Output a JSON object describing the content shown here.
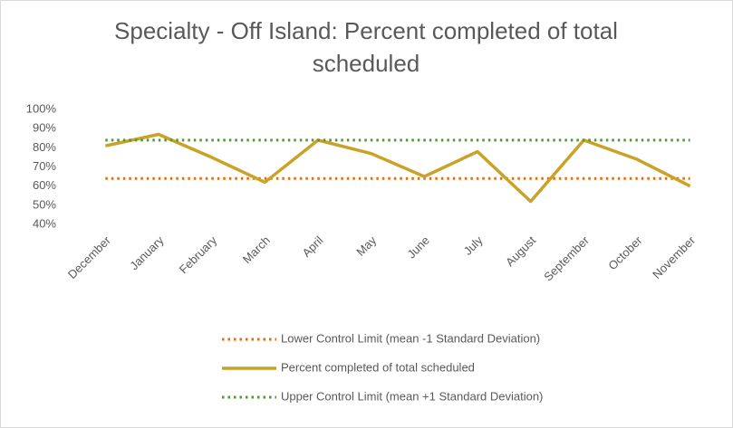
{
  "chart_data": {
    "type": "line",
    "title": "Specialty - Off Island: Percent completed of total scheduled",
    "categories": [
      "December",
      "January",
      "February",
      "March",
      "April",
      "May",
      "June",
      "July",
      "August",
      "September",
      "October",
      "November"
    ],
    "series": [
      {
        "name": "Lower Control Limit (mean -1 Standard Deviation)",
        "color": "#e46c0a",
        "dash": "dotted",
        "values": [
          64,
          64,
          64,
          64,
          64,
          64,
          64,
          64,
          64,
          64,
          64,
          64
        ]
      },
      {
        "name": "Percent completed of total scheduled",
        "color": "#c9a227",
        "dash": "solid",
        "values": [
          81,
          87,
          75,
          62,
          84,
          77,
          65,
          78,
          52,
          84,
          74,
          60
        ]
      },
      {
        "name": "Upper Control Limit (mean +1 Standard Deviation)",
        "color": "#4e9a34",
        "dash": "dotted",
        "values": [
          84,
          84,
          84,
          84,
          84,
          84,
          84,
          84,
          84,
          84,
          84,
          84
        ]
      }
    ],
    "ylim": [
      40,
      100
    ],
    "yticks": [
      {
        "value": 40,
        "label": "40%"
      },
      {
        "value": 50,
        "label": "50%"
      },
      {
        "value": 60,
        "label": "60%"
      },
      {
        "value": 70,
        "label": "70%"
      },
      {
        "value": 80,
        "label": "80%"
      },
      {
        "value": 90,
        "label": "90%"
      },
      {
        "value": 100,
        "label": "100%"
      }
    ],
    "grid": false,
    "legend": "bottom"
  }
}
